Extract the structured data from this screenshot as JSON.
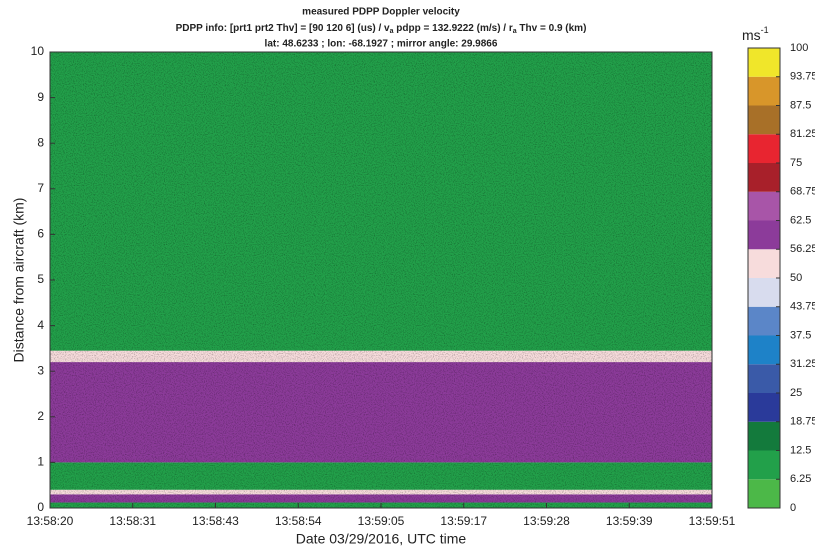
{
  "chart_data": {
    "type": "heatmap",
    "title": "measured PDPP Doppler velocity",
    "subtitle_parts": [
      "PDPP info: [prt1 prt2 Thv] = [90  120    6] (us) / v",
      "a",
      " pdpp = 132.9222 (m/s) / r",
      "a",
      " Thv = 0.9 (km)"
    ],
    "subtitle2": "lat: 48.6233 ; lon: -68.1927 ; mirror angle: 29.9866",
    "xlabel": "Date 03/29/2016, UTC time",
    "ylabel": "Distance from aircraft (km)",
    "xticks": [
      "13:58:20",
      "13:58:31",
      "13:58:43",
      "13:58:54",
      "13:59:05",
      "13:59:17",
      "13:59:28",
      "13:59:39",
      "13:59:51"
    ],
    "ylim": [
      0,
      10
    ],
    "yticks": [
      0,
      1,
      2,
      3,
      4,
      5,
      6,
      7,
      8,
      9,
      10
    ],
    "layers": [
      {
        "from": 0,
        "to": 0.12,
        "level": 8
      },
      {
        "from": 0.12,
        "to": 0.3,
        "level": 60
      },
      {
        "from": 0.3,
        "to": 0.4,
        "level": 52
      },
      {
        "from": 0.4,
        "to": 1.0,
        "level": 8
      },
      {
        "from": 1.0,
        "to": 3.2,
        "level": 60
      },
      {
        "from": 3.2,
        "to": 3.45,
        "level": 52
      },
      {
        "from": 3.45,
        "to": 10,
        "level": 8
      }
    ],
    "colorbar_label_parts": [
      "ms",
      "-1"
    ],
    "colorbar_ticks": [
      0,
      6.25,
      12.5,
      18.75,
      25,
      31.25,
      37.5,
      43.75,
      50,
      56.25,
      62.5,
      68.75,
      75,
      81.25,
      87.5,
      93.75,
      100
    ],
    "colorbar_colors": [
      "#4cb848",
      "#22a04a",
      "#137a3c",
      "#2a3a9a",
      "#3a5aa8",
      "#1e82c8",
      "#5b86c8",
      "#d8dcee",
      "#f7dcdc",
      "#8c3b9a",
      "#a855a8",
      "#a8202a",
      "#e82530",
      "#a87028",
      "#d8962a",
      "#f0e62a"
    ]
  }
}
